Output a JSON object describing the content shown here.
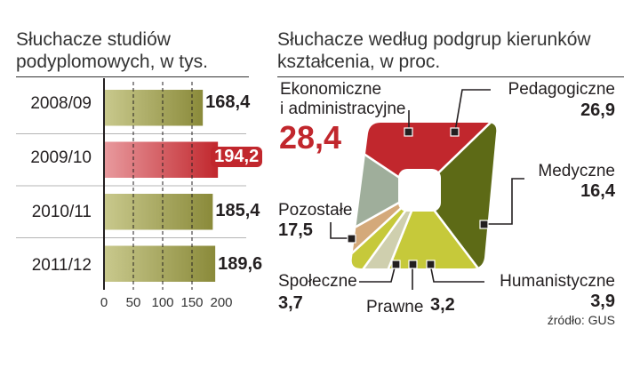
{
  "colors": {
    "olive": "#8a8a3a",
    "olive_light": "#c9c98d",
    "red": "#c1272d",
    "red_light": "#e89a9e",
    "red_accent": "#c1272d",
    "grey_green": "#9fae9b",
    "dark_olive": "#5d6a16",
    "yellow_green": "#c6c93a",
    "grey_beige": "#cfcfae",
    "tan": "#d4a97a"
  },
  "chart_data": [
    {
      "type": "bar",
      "title": "Słuchacze studiów podyplomowych, w tys.",
      "title_lines": [
        "Słuchacze studiów",
        "podyplomowych, w tys."
      ],
      "categories": [
        "2008/09",
        "2009/10",
        "2010/11",
        "2011/12"
      ],
      "values": [
        168.4,
        194.2,
        185.4,
        189.6
      ],
      "value_labels": [
        "168,4",
        "194,2",
        "185,4",
        "189,6"
      ],
      "highlight_index": 1,
      "xlim": [
        0,
        200
      ],
      "xticks": [
        "0",
        "50",
        "100",
        "150",
        "200"
      ],
      "grid": true
    },
    {
      "type": "pie",
      "title": "Słuchacze według podgrup kierunków kształcenia, w proc.",
      "title_lines": [
        "Słuchacze według podgrup kierunków",
        "kształcenia, w proc."
      ],
      "slices": [
        {
          "label": "Ekonomiczne i administracyjne",
          "label_lines": [
            "Ekonomiczne",
            "i administracyjne"
          ],
          "value": 28.4,
          "value_label": "28,4"
        },
        {
          "label": "Pedagogiczne",
          "value": 26.9,
          "value_label": "26,9"
        },
        {
          "label": "Medyczne",
          "value": 16.4,
          "value_label": "16,4"
        },
        {
          "label": "Humanistyczne",
          "value": 3.9,
          "value_label": "3,9"
        },
        {
          "label": "Prawne",
          "value": 3.2,
          "value_label": "3,2"
        },
        {
          "label": "Społeczne",
          "value": 3.7,
          "value_label": "3,7"
        },
        {
          "label": "Pozostałe",
          "value": 17.5,
          "value_label": "17,5"
        }
      ],
      "source": "źródło: GUS"
    }
  ]
}
